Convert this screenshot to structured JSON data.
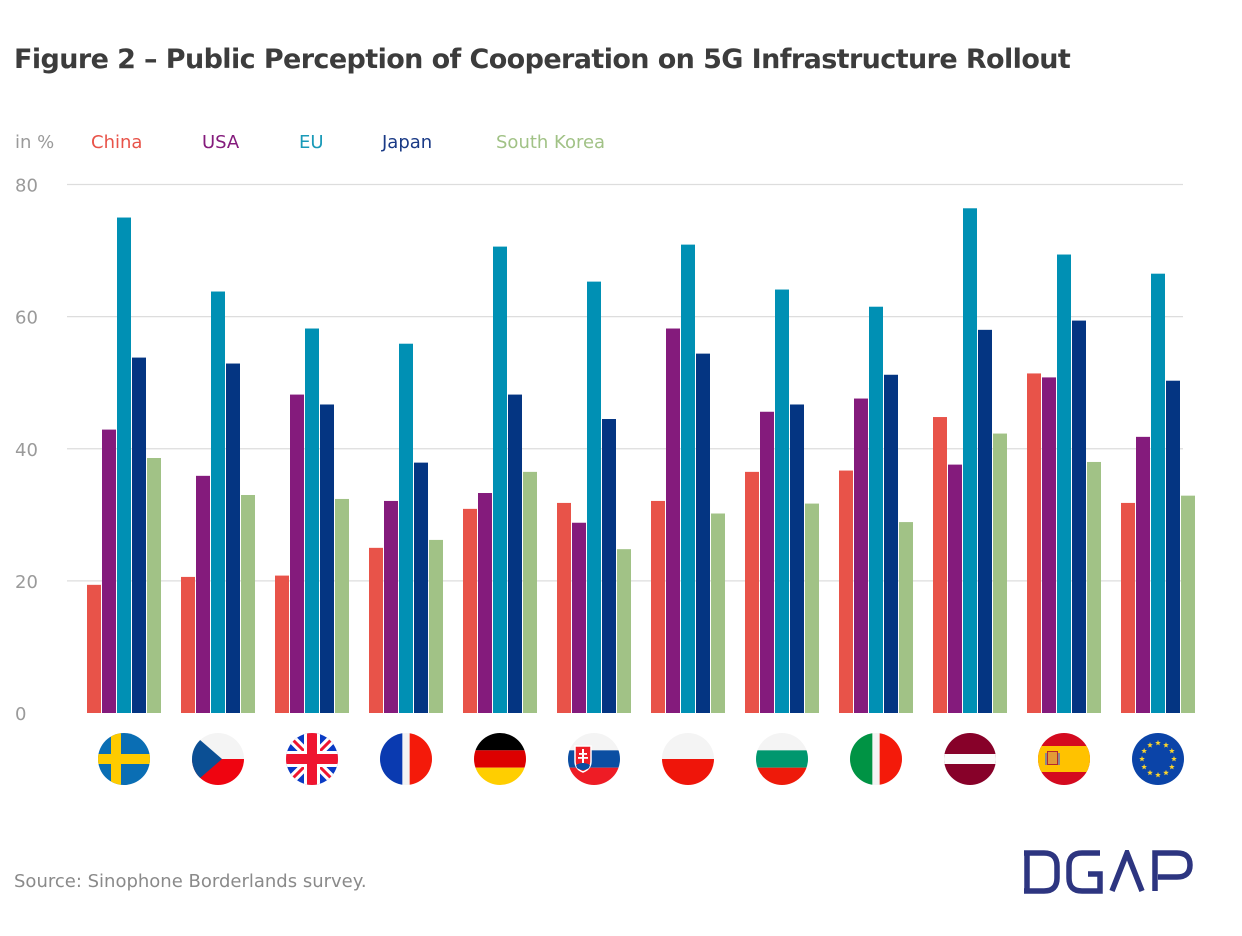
{
  "title": "Figure 2 – Public Perception of Cooperation on 5G Infrastructure Rollout",
  "source": "Source: Sinophone Borderlands survey.",
  "logo_text": "DGAP",
  "colors": {
    "China": "#e85349",
    "USA": "#841b7c",
    "EU": "#0090b4",
    "Japan": "#043582",
    "South Korea": "#a1c286",
    "grid": "#dddddd",
    "axis_text": "#9a9a9a",
    "logo": "#2d3580"
  },
  "chart_data": {
    "type": "bar",
    "title": "Figure 2 – Public Perception of Cooperation on 5G Infrastructure Rollout",
    "ylabel": "in %",
    "xlabel": "",
    "ylim": [
      0,
      80
    ],
    "yticks": [
      0,
      20,
      40,
      60,
      80
    ],
    "grid": true,
    "legend_position": "top-left",
    "categories": [
      "Sweden",
      "Czech Republic",
      "United Kingdom",
      "France",
      "Germany",
      "Slovakia",
      "Poland",
      "Bulgaria",
      "Italy",
      "Latvia",
      "Spain",
      "European Union"
    ],
    "category_icons": [
      "flag-sweden",
      "flag-czech-republic",
      "flag-united-kingdom",
      "flag-france",
      "flag-germany",
      "flag-slovakia",
      "flag-poland",
      "flag-bulgaria",
      "flag-italy",
      "flag-latvia",
      "flag-spain",
      "flag-european-union"
    ],
    "series": [
      {
        "name": "China",
        "values": [
          19.4,
          20.6,
          20.8,
          25.0,
          30.9,
          31.8,
          32.1,
          36.5,
          36.7,
          44.8,
          51.4,
          31.8
        ]
      },
      {
        "name": "USA",
        "values": [
          42.9,
          35.9,
          48.2,
          32.1,
          33.3,
          28.8,
          58.2,
          45.6,
          47.6,
          37.6,
          50.8,
          41.8
        ]
      },
      {
        "name": "EU",
        "values": [
          75.0,
          63.8,
          58.2,
          55.9,
          70.6,
          65.3,
          70.9,
          64.1,
          61.5,
          76.4,
          69.4,
          66.5
        ]
      },
      {
        "name": "Japan",
        "values": [
          53.8,
          52.9,
          46.7,
          37.9,
          48.2,
          44.5,
          54.4,
          46.7,
          51.2,
          58.0,
          59.4,
          50.3
        ]
      },
      {
        "name": "South Korea",
        "values": [
          38.6,
          33.0,
          32.4,
          26.2,
          36.5,
          24.8,
          30.2,
          31.7,
          28.9,
          42.3,
          38.0,
          32.9
        ]
      }
    ]
  },
  "legend": {
    "unit": "in %",
    "items": [
      "China",
      "USA",
      "EU",
      "Japan",
      "South Korea"
    ]
  }
}
